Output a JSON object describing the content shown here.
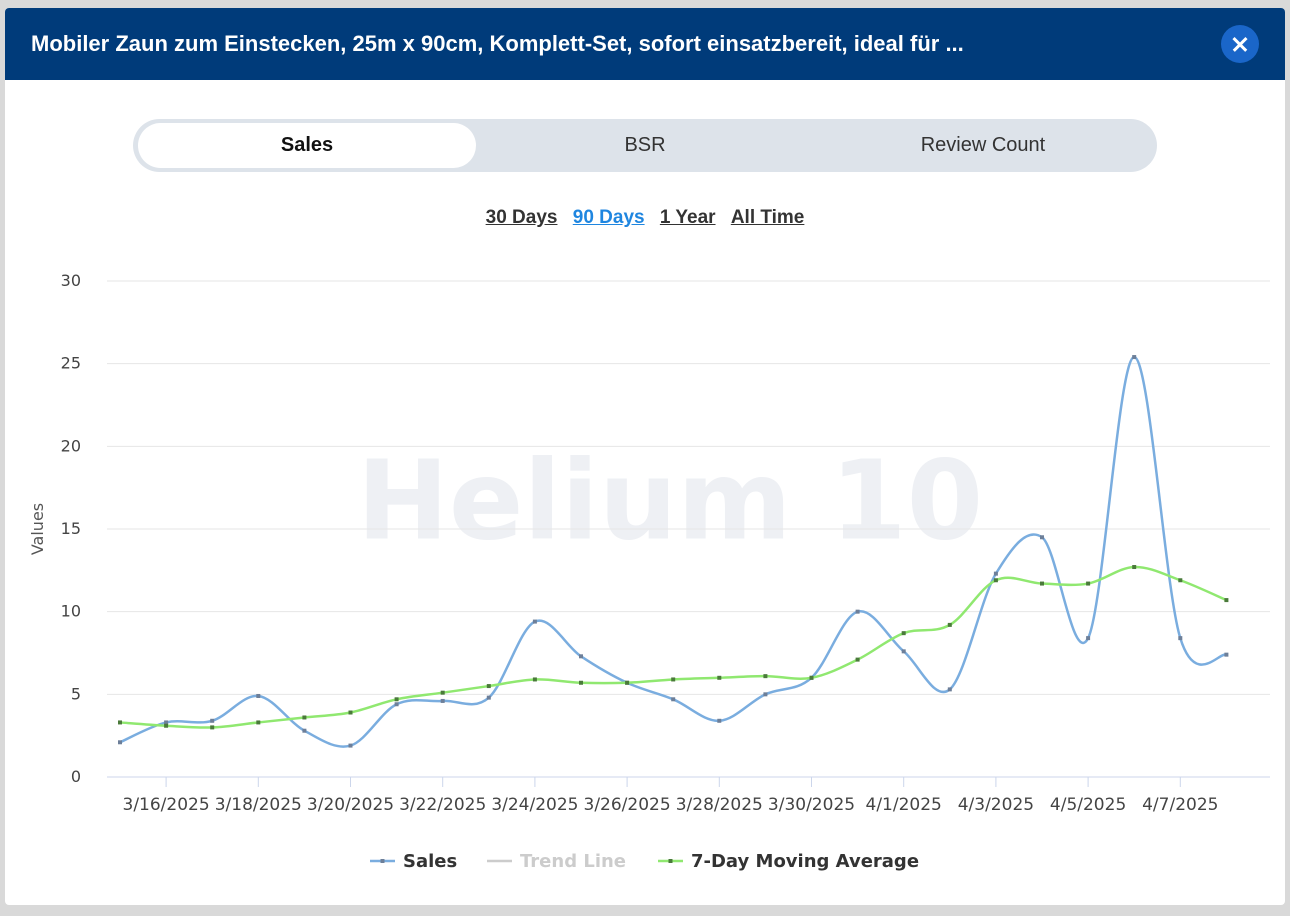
{
  "header": {
    "title": "Mobiler Zaun zum Einstecken, 25m x 90cm, Komplett-Set, sofort einsatzbereit, ideal für ..."
  },
  "tabs": [
    "Sales",
    "BSR",
    "Review Count"
  ],
  "ranges": [
    "30 Days",
    "90 Days",
    "1 Year",
    "All Time"
  ],
  "watermark": "Helium 10",
  "chart_data": {
    "type": "line",
    "y_label": "Values",
    "categories": [
      null,
      "3/16/2025",
      null,
      "3/18/2025",
      null,
      "3/20/2025",
      null,
      "3/22/2025",
      null,
      "3/24/2025",
      null,
      "3/26/2025",
      null,
      "3/28/2025",
      null,
      "3/30/2025",
      null,
      "4/1/2025",
      null,
      "4/3/2025",
      null,
      "4/5/2025",
      null,
      "4/7/2025",
      null
    ],
    "series": [
      {
        "name": "Sales",
        "color": "#7aaddf",
        "values": [
          2.1,
          3.3,
          3.4,
          4.9,
          2.8,
          1.9,
          4.4,
          4.6,
          4.8,
          9.4,
          7.3,
          5.7,
          4.7,
          3.4,
          5.0,
          6.0,
          10.0,
          7.6,
          5.3,
          12.3,
          14.5,
          8.4,
          25.4,
          8.4,
          7.4
        ]
      },
      {
        "name": "Trend Line",
        "color": "#cccccc",
        "hidden": true
      },
      {
        "name": "7-Day Moving Average",
        "color": "#90e870",
        "values": [
          3.3,
          3.1,
          3.0,
          3.3,
          3.6,
          3.9,
          4.7,
          5.1,
          5.5,
          5.9,
          5.7,
          5.7,
          5.9,
          6.0,
          6.1,
          6.0,
          7.1,
          8.7,
          9.2,
          11.9,
          11.7,
          11.7,
          12.7,
          11.9,
          10.7
        ]
      }
    ],
    "ylim": [
      0,
      30
    ],
    "yticks": [
      0,
      5,
      10,
      15,
      20,
      25,
      30
    ],
    "grid": true
  }
}
